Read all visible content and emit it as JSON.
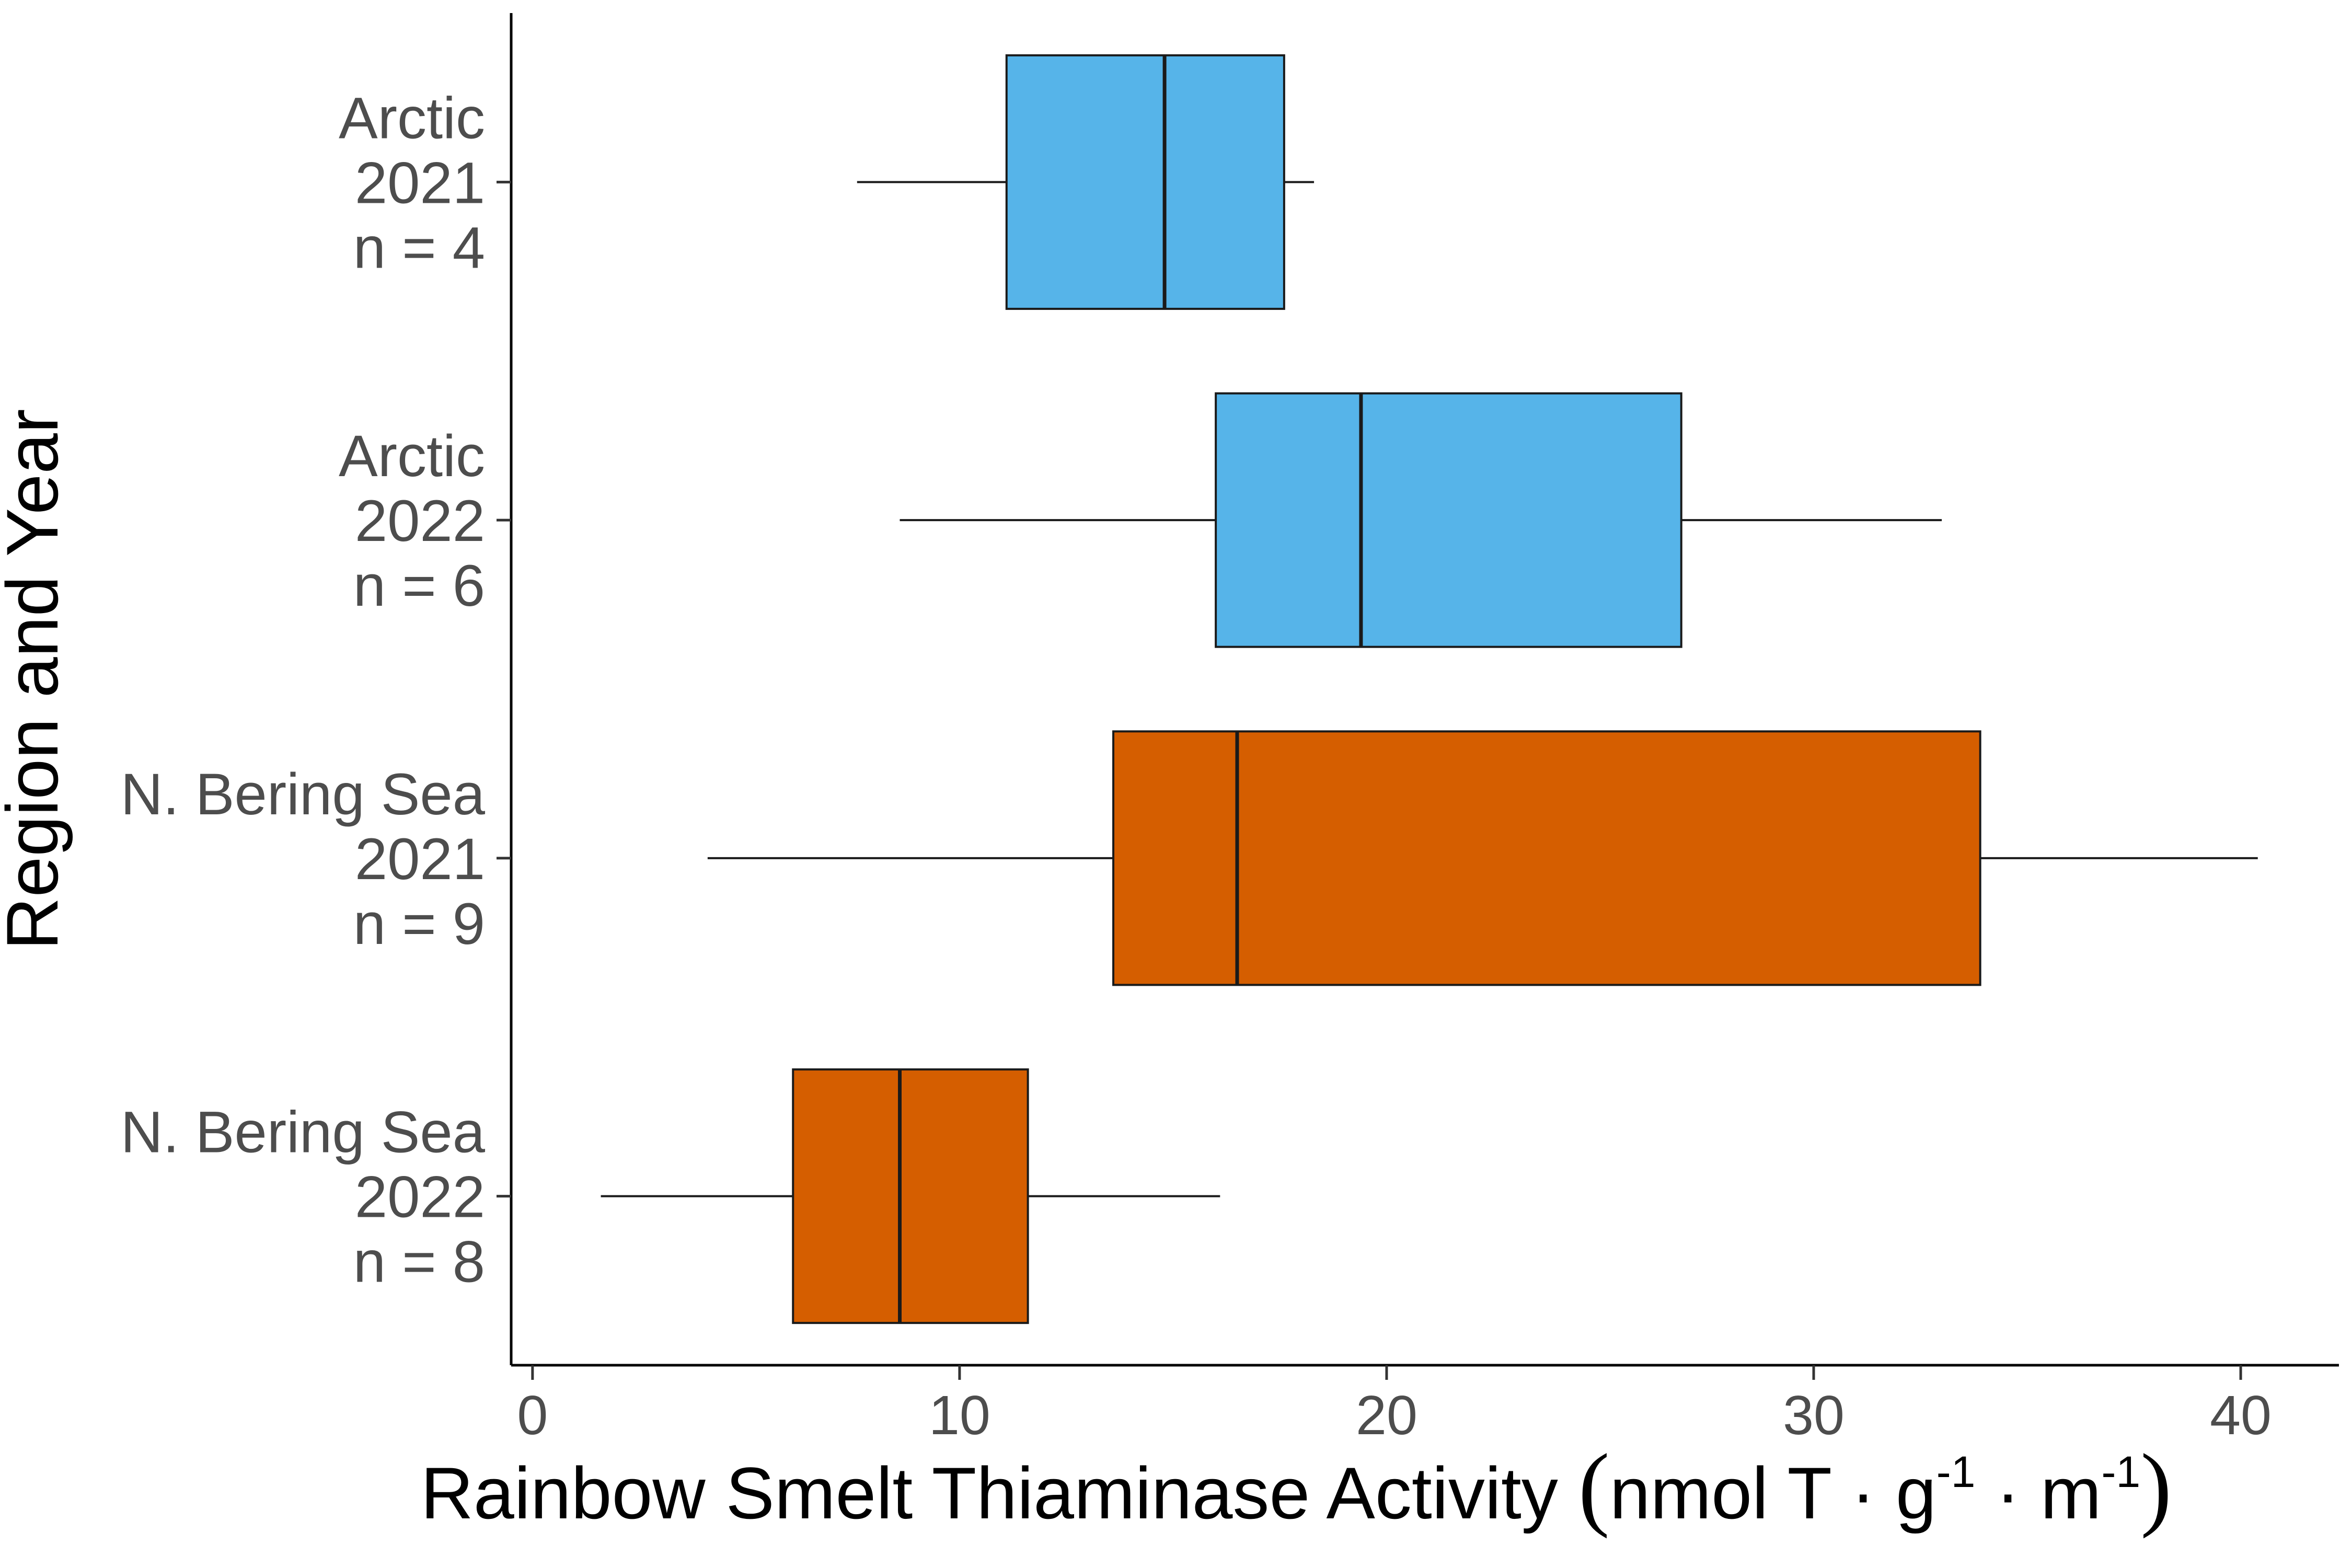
{
  "chart_data": {
    "type": "boxplot",
    "orientation": "horizontal",
    "xlabel_parts": {
      "main": "Rainbow Smelt Thiaminase Activity ",
      "open_paren": "(",
      "unit_a": "nmol T · g",
      "sup_a": "-1",
      "unit_b": " · m",
      "sup_b": "-1",
      "close_paren": ")"
    },
    "ylabel": "Region and Year",
    "xlim": [
      -0.5,
      42.3
    ],
    "xticks": [
      {
        "value": 0,
        "label": "0"
      },
      {
        "value": 10,
        "label": "10"
      },
      {
        "value": 20,
        "label": "20"
      },
      {
        "value": 30,
        "label": "30"
      },
      {
        "value": 40,
        "label": "40"
      }
    ],
    "grid": false,
    "legend": "none",
    "categories": [
      {
        "lines": [
          "Arctic",
          "2021",
          "n = 4"
        ],
        "group": "Arctic",
        "whisker_low": 7.6,
        "q1": 11.1,
        "median": 14.8,
        "q3": 17.6,
        "whisker_high": 18.3
      },
      {
        "lines": [
          "Arctic",
          "2022",
          "n = 6"
        ],
        "group": "Arctic",
        "whisker_low": 8.6,
        "q1": 16.0,
        "median": 19.4,
        "q3": 26.9,
        "whisker_high": 33.0
      },
      {
        "lines": [
          "N. Bering Sea",
          "2021",
          "n = 9"
        ],
        "group": "N. Bering Sea",
        "whisker_low": 4.1,
        "q1": 13.6,
        "median": 16.5,
        "q3": 33.9,
        "whisker_high": 40.4
      },
      {
        "lines": [
          "N. Bering Sea",
          "2022",
          "n = 8"
        ],
        "group": "N. Bering Sea",
        "whisker_low": 1.6,
        "q1": 6.1,
        "median": 8.6,
        "q3": 11.6,
        "whisker_high": 16.1
      }
    ],
    "colors": {
      "Arctic": "#56B4E9",
      "N. Bering Sea": "#D55E00",
      "outline": "#1a1a1a",
      "axis": "#000000"
    }
  }
}
